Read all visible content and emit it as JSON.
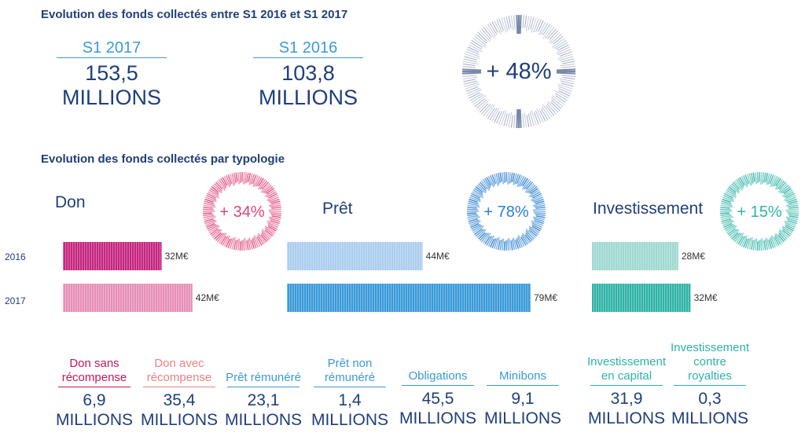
{
  "header": {
    "title1": "Evolution des fonds collectés entre S1 2016 et S1 2017",
    "title2": "Evolution des fonds collectés par typologie"
  },
  "kpis": [
    {
      "label": "S1 2017",
      "value": "153,5",
      "unit": "MILLIONS"
    },
    {
      "label": "S1 2016",
      "value": "103,8",
      "unit": "MILLIONS"
    }
  ],
  "growth_total": "+ 48%",
  "categories": [
    {
      "title": "Don",
      "growth": "+ 34%",
      "color": "#e0457b"
    },
    {
      "title": "Prêt",
      "growth": "+ 78%",
      "color": "#2b7fd0"
    },
    {
      "title": "Investissement",
      "growth": "+ 15%",
      "color": "#2fb3a6"
    }
  ],
  "years": [
    "2016",
    "2017"
  ],
  "subcategories": [
    {
      "label": "Don sans récompense",
      "value": "6,9",
      "unit": "MILLIONS",
      "color": "#c2185b"
    },
    {
      "label": "Don avec récompense",
      "value": "35,4",
      "unit": "MILLIONS",
      "color": "#ef7f86"
    },
    {
      "label": "Prêt rémunéré",
      "value": "23,1",
      "unit": "MILLIONS",
      "color": "#3a9ad9"
    },
    {
      "label": "Prêt non rémunéré",
      "value": "1,4",
      "unit": "MILLIONS",
      "color": "#3a9ad9"
    },
    {
      "label": "Obligations",
      "value": "45,5",
      "unit": "MILLIONS",
      "color": "#3a9ad9"
    },
    {
      "label": "Minibons",
      "value": "9,1",
      "unit": "MILLIONS",
      "color": "#3a9ad9"
    },
    {
      "label": "Investissement en capital",
      "value": "31,9",
      "unit": "MILLIONS",
      "color": "#2fb3a6"
    },
    {
      "label": "Investissement contre royalties",
      "value": "0,3",
      "unit": "MILLIONS",
      "color": "#2fb3a6"
    }
  ],
  "chart_data": {
    "type": "bar",
    "orientation": "horizontal",
    "categories": [
      "Don",
      "Prêt",
      "Investissement"
    ],
    "unit": "M€",
    "series": [
      {
        "name": "2016",
        "values": [
          32,
          44,
          28
        ],
        "labels": [
          "32M€",
          "44M€",
          "28M€"
        ]
      },
      {
        "name": "2017",
        "values": [
          42,
          79,
          32
        ],
        "labels": [
          "42M€",
          "79M€",
          "32M€"
        ]
      }
    ],
    "bar_colors": {
      "Don": {
        "2016": "#c4257e",
        "2017": "#e68fb6"
      },
      "Prêt": {
        "2016": "#a9cdef",
        "2017": "#3a9ad9"
      },
      "Investissement": {
        "2016": "#9fd8d0",
        "2017": "#2fb3a6"
      }
    }
  }
}
